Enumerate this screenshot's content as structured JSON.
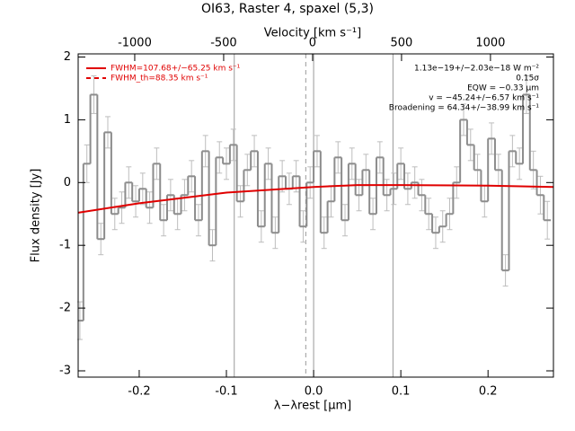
{
  "chart_data": {
    "type": "step",
    "title": "OI63, Raster 4, spaxel (5,3)",
    "xlabel": "λ−λrest [μm]",
    "ylabel": "Flux density [Jy]",
    "x2label": "Velocity [km s⁻¹]",
    "xlim": [
      -0.27,
      0.275
    ],
    "ylim": [
      -3.1,
      2.05
    ],
    "x2lim": [
      -1318,
      1354
    ],
    "xticks": [
      -0.2,
      -0.1,
      {
        "value": 0,
        "label": "0.0"
      },
      0.1,
      0.2
    ],
    "yticks": [
      2,
      1,
      0,
      -1,
      -2,
      -3
    ],
    "x2ticks": [
      -1000,
      -500,
      0,
      500,
      1000
    ],
    "x": [
      -0.268,
      -0.26,
      -0.252,
      -0.244,
      -0.236,
      -0.228,
      -0.22,
      -0.212,
      -0.204,
      -0.196,
      -0.188,
      -0.18,
      -0.172,
      -0.164,
      -0.156,
      -0.148,
      -0.14,
      -0.132,
      -0.124,
      -0.116,
      -0.108,
      -0.1,
      -0.092,
      -0.084,
      -0.076,
      -0.068,
      -0.06,
      -0.052,
      -0.044,
      -0.036,
      -0.028,
      -0.02,
      -0.012,
      -0.004,
      0.004,
      0.012,
      0.02,
      0.028,
      0.036,
      0.044,
      0.052,
      0.06,
      0.068,
      0.076,
      0.084,
      0.092,
      0.1,
      0.108,
      0.116,
      0.124,
      0.132,
      0.14,
      0.148,
      0.156,
      0.164,
      0.172,
      0.18,
      0.188,
      0.196,
      0.204,
      0.212,
      0.22,
      0.228,
      0.236,
      0.244,
      0.252,
      0.26,
      0.268
    ],
    "series": [
      {
        "name": "spectrum",
        "color": "#8c8c8c",
        "error_color": "#bdbdbd",
        "values": [
          -2.2,
          0.3,
          1.4,
          -0.9,
          0.8,
          -0.5,
          -0.4,
          0.0,
          -0.3,
          -0.1,
          -0.4,
          0.3,
          -0.6,
          -0.2,
          -0.5,
          -0.2,
          0.1,
          -0.6,
          0.5,
          -1.0,
          0.4,
          0.3,
          0.6,
          -0.3,
          0.2,
          0.5,
          -0.7,
          0.3,
          -0.8,
          0.1,
          -0.1,
          0.1,
          -0.7,
          0.0,
          0.5,
          -0.8,
          -0.3,
          0.4,
          -0.6,
          0.3,
          -0.2,
          0.2,
          -0.5,
          0.4,
          -0.2,
          -0.1,
          0.3,
          -0.1,
          0.0,
          -0.2,
          -0.5,
          -0.8,
          -0.7,
          -0.5,
          0.0,
          1.0,
          0.6,
          0.2,
          -0.3,
          0.7,
          0.2,
          -1.4,
          0.5,
          0.3,
          1.4,
          0.2,
          -0.2,
          -0.6
        ],
        "errors": [
          0.3,
          0.3,
          0.3,
          0.25,
          0.25,
          0.25,
          0.25,
          0.25,
          0.25,
          0.25,
          0.25,
          0.25,
          0.25,
          0.25,
          0.25,
          0.25,
          0.25,
          0.25,
          0.25,
          0.25,
          0.25,
          0.25,
          0.25,
          0.25,
          0.25,
          0.25,
          0.25,
          0.25,
          0.25,
          0.25,
          0.25,
          0.25,
          0.25,
          0.25,
          0.25,
          0.25,
          0.25,
          0.25,
          0.25,
          0.25,
          0.25,
          0.25,
          0.25,
          0.25,
          0.25,
          0.25,
          0.25,
          0.25,
          0.25,
          0.25,
          0.25,
          0.25,
          0.25,
          0.25,
          0.25,
          0.25,
          0.25,
          0.25,
          0.25,
          0.25,
          0.25,
          0.25,
          0.25,
          0.25,
          0.3,
          0.3,
          0.3,
          0.3
        ]
      }
    ],
    "fit": {
      "color": "#e00000",
      "x": [
        -0.27,
        -0.2,
        -0.1,
        0.0,
        0.05,
        0.1,
        0.2,
        0.275
      ],
      "values": [
        -0.48,
        -0.33,
        -0.16,
        -0.07,
        -0.04,
        -0.04,
        -0.05,
        -0.07
      ]
    },
    "vlines": [
      -0.091,
      0.0,
      0.091
    ],
    "dashed_vlines": [
      -0.009
    ],
    "legend": [
      {
        "name": "FWHM=107.68+/−65.25 km s⁻¹",
        "style": "solid",
        "color": "#e00000"
      },
      {
        "name": "FWHM_th=88.35 km s⁻¹",
        "style": "dashed",
        "color": "#e00000"
      }
    ],
    "annotations": [
      "1.13e−19+/−2.03e−18 W m⁻²",
      "0.15σ",
      "EQW = −0.33 μm",
      "v = −45.24+/−6.57 km s⁻¹",
      "Broadening = 64.34+/−38.99 km s⁻¹"
    ]
  }
}
